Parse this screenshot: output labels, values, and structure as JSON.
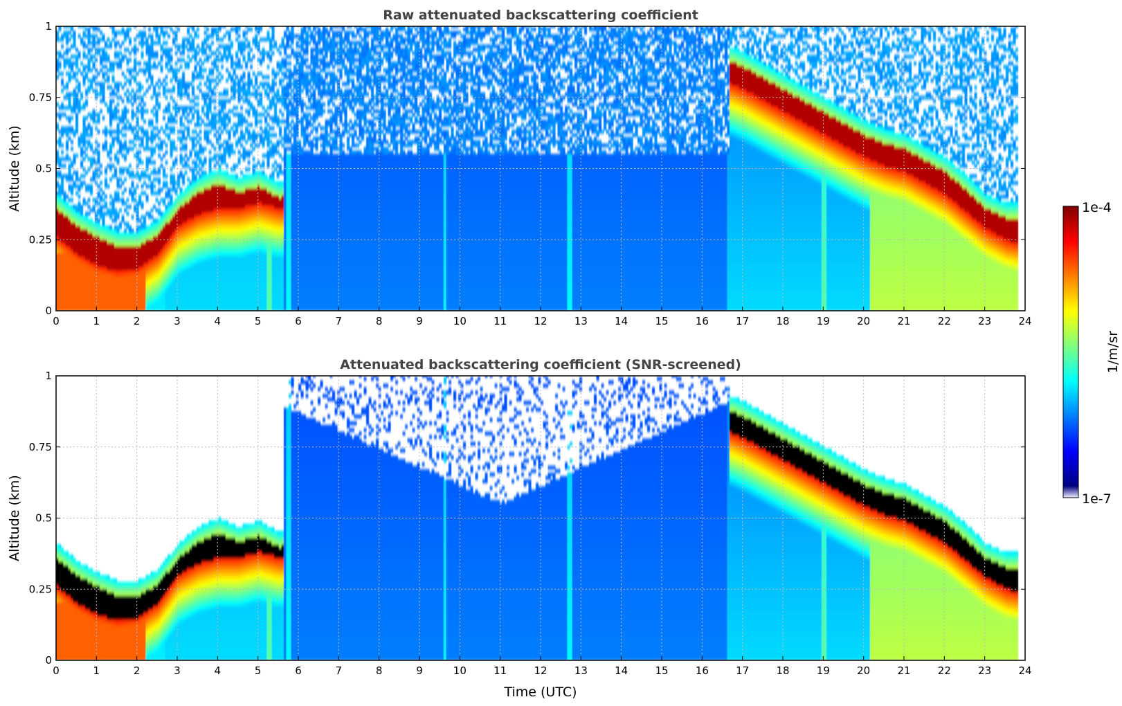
{
  "chart_data": [
    {
      "type": "heatmap",
      "title": "Raw attenuated backscattering coefficient",
      "xlabel": "",
      "ylabel": "Altitude (km)",
      "xlim": [
        0,
        24
      ],
      "ylim": [
        0,
        1
      ],
      "x_ticks": [
        "0",
        "1",
        "2",
        "3",
        "4",
        "5",
        "6",
        "7",
        "8",
        "9",
        "10",
        "11",
        "12",
        "13",
        "14",
        "15",
        "16",
        "17",
        "18",
        "19",
        "20",
        "21",
        "22",
        "23",
        "24"
      ],
      "y_ticks": [
        "0",
        "0.25",
        "0.5",
        "0.75",
        "1"
      ],
      "grid": true,
      "data_end_time": 23.8,
      "layer_top_km": {
        "x": [
          0,
          0.5,
          1,
          1.5,
          2,
          2.5,
          3,
          3.5,
          4,
          4.5,
          5,
          5.5,
          16.7,
          17,
          17.5,
          18,
          18.5,
          19,
          19.5,
          20,
          20.5,
          21,
          21.5,
          22,
          22.5,
          23,
          23.5,
          23.8
        ],
        "y": [
          0.36,
          0.3,
          0.26,
          0.23,
          0.23,
          0.27,
          0.36,
          0.42,
          0.45,
          0.42,
          0.44,
          0.4,
          0.88,
          0.86,
          0.82,
          0.78,
          0.74,
          0.7,
          0.66,
          0.62,
          0.59,
          0.57,
          0.53,
          0.49,
          0.43,
          0.36,
          0.33,
          0.33
        ]
      },
      "layer_bottom_km": {
        "x": [
          0,
          0.5,
          1,
          1.5,
          2,
          2.5,
          3,
          3.5,
          4,
          4.5,
          5,
          5.5,
          16.7,
          17,
          17.5,
          18,
          18.5,
          19,
          19.5,
          20,
          20.5,
          21,
          21.5,
          22,
          22.5,
          23,
          23.5,
          23.8
        ],
        "y": [
          0.26,
          0.2,
          0.16,
          0.14,
          0.15,
          0.2,
          0.3,
          0.34,
          0.36,
          0.36,
          0.38,
          0.36,
          0.8,
          0.78,
          0.74,
          0.7,
          0.66,
          0.62,
          0.58,
          0.54,
          0.51,
          0.49,
          0.45,
          0.41,
          0.35,
          0.29,
          0.25,
          0.24
        ]
      },
      "colorbar": {
        "label": "1/m/sr",
        "min": "1e-7",
        "max": "1e-4",
        "scale": "log",
        "colormap": "jet"
      }
    },
    {
      "type": "heatmap",
      "title": "Attenuated backscattering coefficient (SNR-screened)",
      "xlabel": "Time (UTC)",
      "ylabel": "Altitude (km)",
      "xlim": [
        0,
        24
      ],
      "ylim": [
        0,
        1
      ],
      "x_ticks": [
        "0",
        "1",
        "2",
        "3",
        "4",
        "5",
        "6",
        "7",
        "8",
        "9",
        "10",
        "11",
        "12",
        "13",
        "14",
        "15",
        "16",
        "17",
        "18",
        "19",
        "20",
        "21",
        "22",
        "23",
        "24"
      ],
      "y_ticks": [
        "0",
        "0.25",
        "0.5",
        "0.75",
        "1"
      ],
      "grid": true,
      "data_end_time": 23.8,
      "screened_out_color": "#ffffff",
      "saturated_color": "#000000"
    }
  ],
  "colorbar": {
    "label": "1/m/sr",
    "max_label": "1e-4",
    "min_label": "1e-7"
  },
  "colors": {
    "colormap": [
      "#00007f",
      "#0000ff",
      "#007fff",
      "#00ffff",
      "#7fff7f",
      "#ffff00",
      "#ff7f00",
      "#ff0000",
      "#7f0000"
    ],
    "grid": "#bbbbbb",
    "title": "#444444"
  }
}
